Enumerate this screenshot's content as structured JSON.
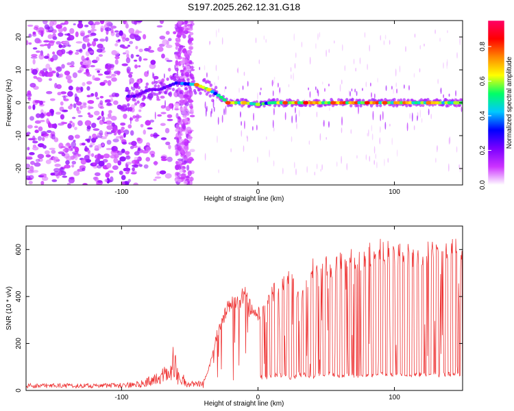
{
  "page_title": "S197.2025.262.12.31.G18",
  "chart_data": [
    {
      "type": "heatmap",
      "name": "spectrogram",
      "xlabel": "Height of straight line (km)",
      "ylabel": "Frequency (Hz)",
      "xlim": [
        -170,
        150
      ],
      "ylim": [
        -25,
        25
      ],
      "xticks": [
        -100,
        0,
        100
      ],
      "yticks": [
        -20,
        -10,
        0,
        10,
        20
      ],
      "colorbar": {
        "label": "Normalized spectral amplitude",
        "range": [
          0,
          0.95
        ],
        "ticks": [
          0.0,
          0.2,
          0.4,
          0.6,
          0.8
        ],
        "colormap": [
          "#ffffff",
          "#cc33ff",
          "#7a00ff",
          "#0000ff",
          "#00c8ff",
          "#00ff66",
          "#ffff00",
          "#ff8800",
          "#ff0000",
          "#ff0066"
        ]
      },
      "signal_track": [
        {
          "x": -90,
          "freq": 2.0,
          "amp": 0.25
        },
        {
          "x": -80,
          "freq": 4.0,
          "amp": 0.3
        },
        {
          "x": -72,
          "freq": 4.0,
          "amp": 0.25
        },
        {
          "x": -60,
          "freq": 6.0,
          "amp": 0.3
        },
        {
          "x": -45,
          "freq": 5.5,
          "amp": 0.75
        },
        {
          "x": -36,
          "freq": 4.0,
          "amp": 0.65
        },
        {
          "x": -28,
          "freq": 2.0,
          "amp": 0.5
        },
        {
          "x": -22,
          "freq": 0.0,
          "amp": 0.8
        },
        {
          "x": -10,
          "freq": 0.0,
          "amp": 0.7
        },
        {
          "x": 0,
          "freq": -0.5,
          "amp": 0.6
        },
        {
          "x": 10,
          "freq": 0.0,
          "amp": 0.55
        },
        {
          "x": 20,
          "freq": 0.0,
          "amp": 0.8
        },
        {
          "x": 35,
          "freq": 0.0,
          "amp": 0.85
        },
        {
          "x": 55,
          "freq": 0.0,
          "amp": 0.8
        },
        {
          "x": 80,
          "freq": 0.0,
          "amp": 0.85
        },
        {
          "x": 93,
          "freq": 0.0,
          "amp": 0.8
        },
        {
          "x": 125,
          "freq": 0.0,
          "amp": 0.75
        },
        {
          "x": 145,
          "freq": 0.0,
          "amp": 0.6
        }
      ]
    },
    {
      "type": "line",
      "name": "snr",
      "xlabel": "Height of straight line (km)",
      "ylabel": "SNR (10 * v/v)",
      "xlim": [
        -170,
        150
      ],
      "ylim": [
        0,
        700
      ],
      "xticks": [
        -100,
        0,
        100
      ],
      "yticks": [
        0,
        200,
        400,
        600
      ],
      "color": "#ee3333",
      "series": [
        {
          "name": "SNR",
          "x": [
            -170,
            -150,
            -130,
            -110,
            -90,
            -80,
            -75,
            -70,
            -65,
            -62,
            -58,
            -50,
            -40,
            -35,
            -30,
            -25,
            -20,
            -15,
            -10,
            -5,
            0,
            5,
            10,
            15,
            20,
            25,
            30,
            35,
            40,
            45,
            50,
            55,
            60,
            65,
            70,
            75,
            80,
            85,
            90,
            95,
            100,
            105,
            110,
            115,
            120,
            125,
            130,
            135,
            140,
            145,
            150
          ],
          "upper": [
            30,
            30,
            30,
            30,
            35,
            60,
            70,
            110,
            130,
            190,
            90,
            45,
            40,
            120,
            260,
            340,
            420,
            400,
            450,
            380,
            360,
            380,
            440,
            500,
            520,
            510,
            440,
            470,
            580,
            560,
            600,
            550,
            590,
            580,
            620,
            600,
            640,
            620,
            660,
            640,
            620,
            650,
            640,
            600,
            630,
            640,
            650,
            630,
            640,
            650,
            620
          ],
          "lower": [
            10,
            10,
            10,
            10,
            10,
            15,
            20,
            30,
            30,
            40,
            20,
            10,
            10,
            30,
            40,
            40,
            40,
            35,
            30,
            35,
            50,
            45,
            50,
            60,
            50,
            45,
            60,
            55,
            50,
            55,
            60,
            55,
            50,
            60,
            55,
            50,
            60,
            55,
            60,
            55,
            60,
            55,
            60,
            55,
            60,
            55,
            60,
            55,
            60,
            55,
            60
          ]
        }
      ]
    }
  ]
}
